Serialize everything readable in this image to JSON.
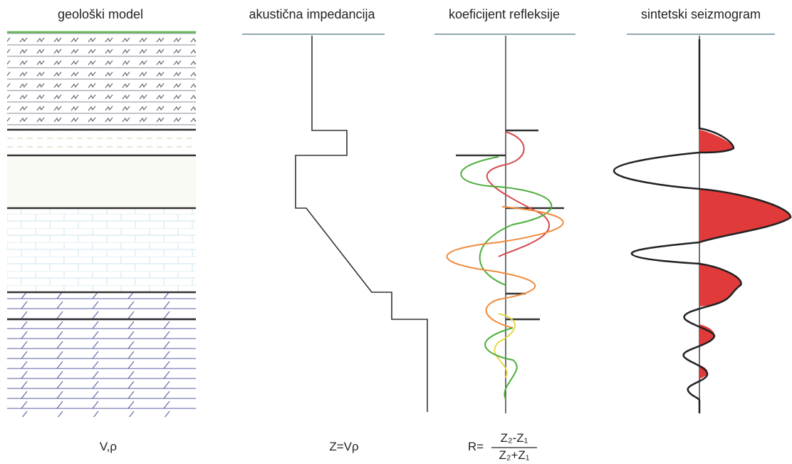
{
  "columns": [
    {
      "title": "geološki model",
      "formula": "V,ρ"
    },
    {
      "title": "akustična impedancija",
      "formula": "Z=Vρ"
    },
    {
      "title": "koeficijent refleksije",
      "formula": {
        "lhs": "R=",
        "numerator": "Z₂-Z₁",
        "denominator": "Z₂+Z₁"
      }
    },
    {
      "title": "sintetski seizmogram"
    }
  ]
}
